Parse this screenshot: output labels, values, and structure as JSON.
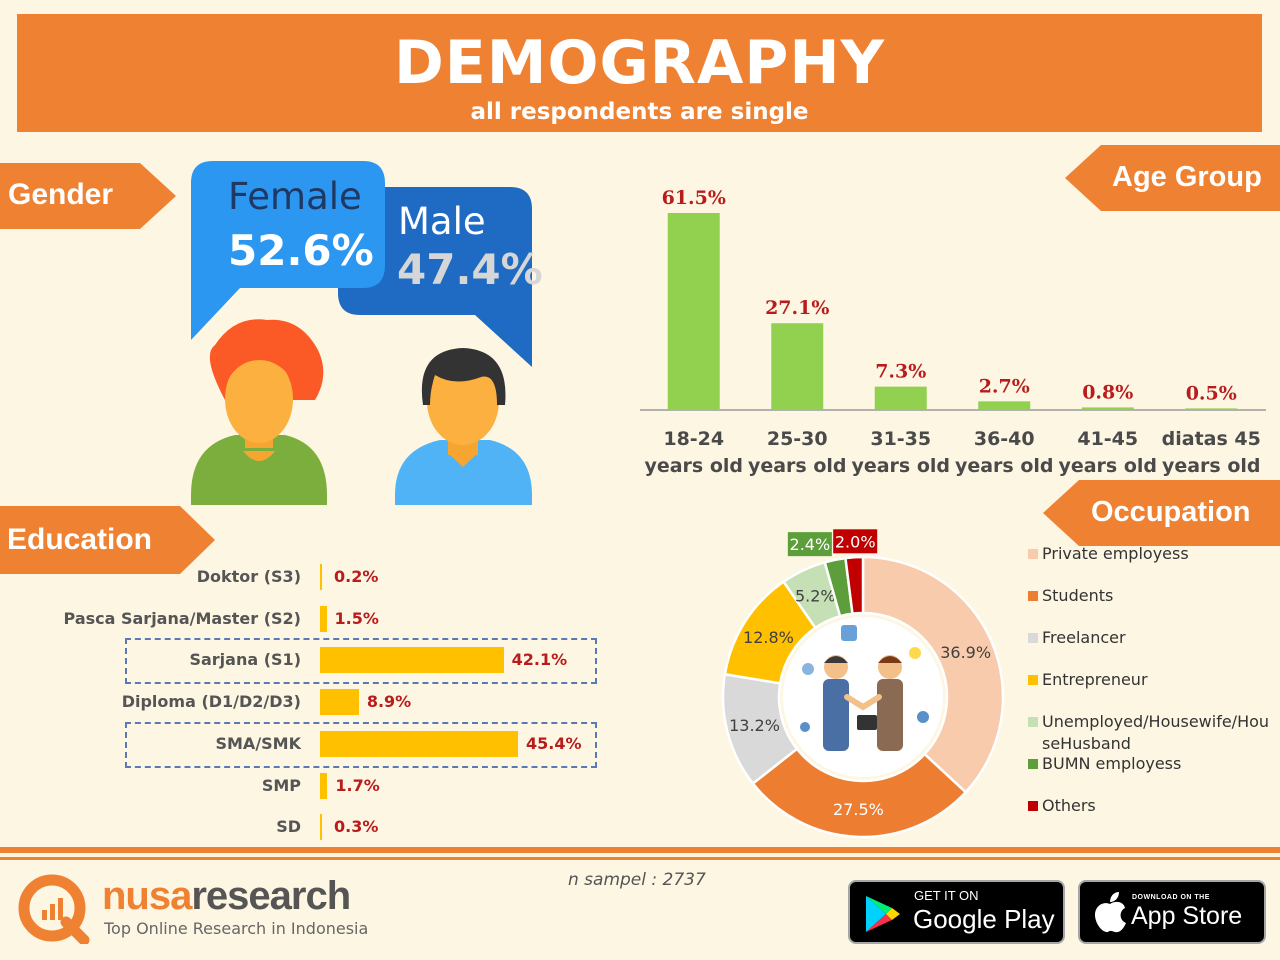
{
  "header": {
    "title": "DEMOGRAPHY",
    "subtitle": "all respondents are single"
  },
  "gender": {
    "tag": "Gender",
    "female_label": "Female",
    "female_value": "52.6%",
    "male_label": "Male",
    "male_value": "47.4%"
  },
  "colors": {
    "orange": "#ef8232",
    "female_bubble": "#2b97f0",
    "male_bubble": "#1f6bc4",
    "age_bar": "#92d050",
    "edu_bar": "#ffc000",
    "value_red": "#b81c1c"
  },
  "age_group": {
    "tag": "Age Group"
  },
  "education": {
    "tag": "Education"
  },
  "occupation": {
    "tag": "Occupation"
  },
  "chart_data": [
    {
      "type": "bar",
      "title": "Age Group",
      "categories": [
        "18-24 years old",
        "25-30 years old",
        "31-35 years old",
        "36-40 years old",
        "41-45 years old",
        "diatas 45 years old"
      ],
      "category_lines": [
        [
          "18-24",
          "years old"
        ],
        [
          "25-30",
          "years old"
        ],
        [
          "31-35",
          "years old"
        ],
        [
          "36-40",
          "years old"
        ],
        [
          "41-45",
          "years old"
        ],
        [
          "diatas 45",
          "years old"
        ]
      ],
      "values": [
        61.5,
        27.1,
        7.3,
        2.7,
        0.8,
        0.5
      ],
      "labels": [
        "61.5%",
        "27.1%",
        "7.3%",
        "2.7%",
        "0.8%",
        "0.5%"
      ],
      "ylim": [
        0,
        61.5
      ],
      "grid": false,
      "color": "#92d050"
    },
    {
      "type": "bar",
      "orientation": "horizontal",
      "title": "Education",
      "categories": [
        "Doktor (S3)",
        "Pasca Sarjana/Master (S2)",
        "Sarjana (S1)",
        "Diploma (D1/D2/D3)",
        "SMA/SMK",
        "SMP",
        "SD"
      ],
      "values": [
        0.2,
        1.5,
        42.1,
        8.9,
        45.4,
        1.7,
        0.3
      ],
      "labels": [
        "0.2%",
        "1.5%",
        "42.1%",
        "8.9%",
        "45.4%",
        "1.7%",
        "0.3%"
      ],
      "highlighted": [
        "Sarjana (S1)",
        "SMA/SMK"
      ],
      "xlim": [
        0,
        45.4
      ],
      "grid": false,
      "color": "#ffc000"
    },
    {
      "type": "pie",
      "style": "donut",
      "title": "Occupation",
      "categories": [
        "Private employess",
        "Students",
        "Freelancer",
        "Entrepreneur",
        "Unemployed/Housewife/HouseHusband",
        "BUMN employess",
        "Others"
      ],
      "values": [
        36.9,
        27.5,
        13.2,
        12.8,
        5.2,
        2.4,
        2.0
      ],
      "labels": [
        "36.9%",
        "27.5%",
        "13.2%",
        "12.8%",
        "5.2%",
        "2.4%",
        "2.0%"
      ],
      "colors": [
        "#f8cbad",
        "#ed7d31",
        "#d9d9d9",
        "#ffc000",
        "#c5e0b4",
        "#5b9e3a",
        "#c00000"
      ],
      "legend": "right"
    }
  ],
  "footer": {
    "sample": "n sampel : 2737",
    "brand_nusa": "nusa",
    "brand_research": "research",
    "tagline": "Top Online Research in Indonesia",
    "google_top": "GET IT ON",
    "google_bottom": "Google Play",
    "apple_top": "DOWNLOAD ON THE",
    "apple_bottom": "App Store"
  }
}
